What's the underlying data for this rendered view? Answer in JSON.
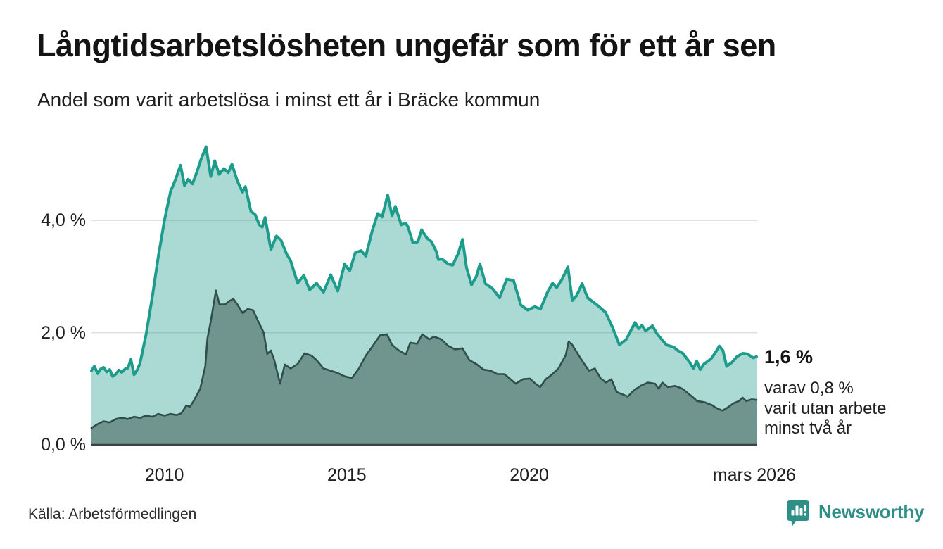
{
  "header": {
    "title": "Långtidsarbetslösheten ungefär som för ett år sen",
    "subtitle": "Andel som varit arbetslösa i minst ett år i Bräcke kommun"
  },
  "annotation": {
    "value_label": "1,6 %",
    "detail_lines": [
      "varav 0,8 %",
      "varit utan arbete",
      "minst två år"
    ]
  },
  "footer": {
    "source": "Källa: Arbetsförmedlingen",
    "brand": "Newsworthy"
  },
  "colors": {
    "outer_line": "#1e9c8b",
    "outer_fill": "rgba(23,153,138,0.36)",
    "inner_line": "#2f4f4a",
    "inner_fill": "#70948e",
    "grid": "#e0e0e0",
    "axis": "#384442",
    "brand_teal": "#2d8f86"
  },
  "chart_data": {
    "type": "area",
    "title": "Långtidsarbetslösheten ungefär som för ett år sen",
    "subtitle": "Andel som varit arbetslösa i minst ett år i Bräcke kommun",
    "unit": "%",
    "grid": "horizontal",
    "legend": "none",
    "x_domain": [
      2008.0,
      2026.25
    ],
    "y_domain": [
      0,
      5.5
    ],
    "x_ticks": [
      {
        "label": "2010",
        "year": 2010
      },
      {
        "label": "2015",
        "year": 2015
      },
      {
        "label": "2020",
        "year": 2020
      },
      {
        "label": "mars 2026",
        "year": 2026.17
      }
    ],
    "y_ticks": [
      {
        "label": "0,0 %",
        "value": 0
      },
      {
        "label": "2,0 %",
        "value": 2
      },
      {
        "label": "4,0 %",
        "value": 4
      }
    ],
    "end_values": {
      "minst_ett_ar": 1.6,
      "minst_tva_ar": 0.8
    },
    "series": [
      {
        "name": "Andel arbetslösa minst ett år",
        "line": "#1e9c8b",
        "fill": "rgba(23,153,138,0.36)",
        "stroke_width": 4,
        "points": [
          [
            2008.0,
            1.32
          ],
          [
            2008.08,
            1.4
          ],
          [
            2008.17,
            1.27
          ],
          [
            2008.25,
            1.35
          ],
          [
            2008.33,
            1.38
          ],
          [
            2008.42,
            1.3
          ],
          [
            2008.5,
            1.34
          ],
          [
            2008.58,
            1.22
          ],
          [
            2008.67,
            1.26
          ],
          [
            2008.75,
            1.33
          ],
          [
            2008.83,
            1.29
          ],
          [
            2008.92,
            1.35
          ],
          [
            2009.0,
            1.37
          ],
          [
            2009.08,
            1.52
          ],
          [
            2009.17,
            1.25
          ],
          [
            2009.25,
            1.33
          ],
          [
            2009.33,
            1.45
          ],
          [
            2009.5,
            1.98
          ],
          [
            2009.67,
            2.65
          ],
          [
            2009.83,
            3.35
          ],
          [
            2010.0,
            4.0
          ],
          [
            2010.17,
            4.52
          ],
          [
            2010.3,
            4.72
          ],
          [
            2010.44,
            4.98
          ],
          [
            2010.55,
            4.62
          ],
          [
            2010.65,
            4.73
          ],
          [
            2010.77,
            4.65
          ],
          [
            2010.9,
            4.88
          ],
          [
            2011.0,
            5.08
          ],
          [
            2011.14,
            5.31
          ],
          [
            2011.27,
            4.78
          ],
          [
            2011.38,
            5.06
          ],
          [
            2011.5,
            4.82
          ],
          [
            2011.63,
            4.92
          ],
          [
            2011.75,
            4.85
          ],
          [
            2011.85,
            5.0
          ],
          [
            2012.0,
            4.7
          ],
          [
            2012.14,
            4.5
          ],
          [
            2012.22,
            4.6
          ],
          [
            2012.37,
            4.16
          ],
          [
            2012.49,
            4.1
          ],
          [
            2012.6,
            3.92
          ],
          [
            2012.68,
            3.88
          ],
          [
            2012.76,
            4.05
          ],
          [
            2012.92,
            3.48
          ],
          [
            2013.07,
            3.72
          ],
          [
            2013.2,
            3.64
          ],
          [
            2013.35,
            3.4
          ],
          [
            2013.46,
            3.28
          ],
          [
            2013.65,
            2.88
          ],
          [
            2013.82,
            3.02
          ],
          [
            2013.98,
            2.76
          ],
          [
            2014.17,
            2.88
          ],
          [
            2014.36,
            2.72
          ],
          [
            2014.56,
            3.03
          ],
          [
            2014.75,
            2.74
          ],
          [
            2014.94,
            3.22
          ],
          [
            2015.08,
            3.1
          ],
          [
            2015.23,
            3.42
          ],
          [
            2015.39,
            3.46
          ],
          [
            2015.52,
            3.36
          ],
          [
            2015.7,
            3.82
          ],
          [
            2015.85,
            4.12
          ],
          [
            2015.97,
            4.06
          ],
          [
            2016.12,
            4.45
          ],
          [
            2016.24,
            4.08
          ],
          [
            2016.33,
            4.25
          ],
          [
            2016.49,
            3.92
          ],
          [
            2016.62,
            3.95
          ],
          [
            2016.68,
            3.88
          ],
          [
            2016.81,
            3.6
          ],
          [
            2016.95,
            3.62
          ],
          [
            2017.05,
            3.83
          ],
          [
            2017.2,
            3.68
          ],
          [
            2017.32,
            3.62
          ],
          [
            2017.45,
            3.45
          ],
          [
            2017.51,
            3.3
          ],
          [
            2017.61,
            3.31
          ],
          [
            2017.78,
            3.22
          ],
          [
            2017.9,
            3.2
          ],
          [
            2018.05,
            3.4
          ],
          [
            2018.17,
            3.66
          ],
          [
            2018.28,
            3.16
          ],
          [
            2018.42,
            2.85
          ],
          [
            2018.55,
            3.0
          ],
          [
            2018.65,
            3.22
          ],
          [
            2018.8,
            2.87
          ],
          [
            2019.0,
            2.78
          ],
          [
            2019.19,
            2.62
          ],
          [
            2019.38,
            2.95
          ],
          [
            2019.57,
            2.93
          ],
          [
            2019.77,
            2.49
          ],
          [
            2019.96,
            2.4
          ],
          [
            2020.15,
            2.46
          ],
          [
            2020.31,
            2.42
          ],
          [
            2020.5,
            2.72
          ],
          [
            2020.64,
            2.88
          ],
          [
            2020.75,
            2.8
          ],
          [
            2020.9,
            2.95
          ],
          [
            2021.06,
            3.17
          ],
          [
            2021.18,
            2.57
          ],
          [
            2021.3,
            2.66
          ],
          [
            2021.45,
            2.87
          ],
          [
            2021.6,
            2.62
          ],
          [
            2021.7,
            2.57
          ],
          [
            2021.9,
            2.47
          ],
          [
            2022.09,
            2.36
          ],
          [
            2022.28,
            2.1
          ],
          [
            2022.47,
            1.78
          ],
          [
            2022.66,
            1.88
          ],
          [
            2022.9,
            2.18
          ],
          [
            2023.0,
            2.07
          ],
          [
            2023.09,
            2.13
          ],
          [
            2023.19,
            2.03
          ],
          [
            2023.38,
            2.12
          ],
          [
            2023.49,
            1.99
          ],
          [
            2023.63,
            1.88
          ],
          [
            2023.76,
            1.78
          ],
          [
            2023.96,
            1.74
          ],
          [
            2024.07,
            1.68
          ],
          [
            2024.21,
            1.63
          ],
          [
            2024.4,
            1.47
          ],
          [
            2024.5,
            1.36
          ],
          [
            2024.59,
            1.49
          ],
          [
            2024.69,
            1.34
          ],
          [
            2024.79,
            1.44
          ],
          [
            2024.98,
            1.53
          ],
          [
            2025.11,
            1.65
          ],
          [
            2025.21,
            1.76
          ],
          [
            2025.31,
            1.68
          ],
          [
            2025.41,
            1.4
          ],
          [
            2025.56,
            1.47
          ],
          [
            2025.69,
            1.57
          ],
          [
            2025.85,
            1.63
          ],
          [
            2025.98,
            1.62
          ],
          [
            2026.14,
            1.55
          ],
          [
            2026.23,
            1.57
          ]
        ]
      },
      {
        "name": "varav arbetslösa minst två år",
        "line": "#2f4f4a",
        "fill": "#70948e",
        "stroke_width": 2.6,
        "points": [
          [
            2008.0,
            0.3
          ],
          [
            2008.17,
            0.37
          ],
          [
            2008.33,
            0.42
          ],
          [
            2008.5,
            0.4
          ],
          [
            2008.67,
            0.46
          ],
          [
            2008.83,
            0.48
          ],
          [
            2009.0,
            0.46
          ],
          [
            2009.17,
            0.5
          ],
          [
            2009.33,
            0.48
          ],
          [
            2009.5,
            0.52
          ],
          [
            2009.67,
            0.5
          ],
          [
            2009.83,
            0.55
          ],
          [
            2010.0,
            0.52
          ],
          [
            2010.17,
            0.55
          ],
          [
            2010.33,
            0.53
          ],
          [
            2010.46,
            0.56
          ],
          [
            2010.6,
            0.7
          ],
          [
            2010.7,
            0.68
          ],
          [
            2010.8,
            0.78
          ],
          [
            2010.98,
            1.0
          ],
          [
            2011.12,
            1.4
          ],
          [
            2011.18,
            1.9
          ],
          [
            2011.27,
            2.2
          ],
          [
            2011.41,
            2.75
          ],
          [
            2011.51,
            2.5
          ],
          [
            2011.66,
            2.5
          ],
          [
            2011.78,
            2.56
          ],
          [
            2011.89,
            2.6
          ],
          [
            2012.0,
            2.5
          ],
          [
            2012.14,
            2.35
          ],
          [
            2012.28,
            2.42
          ],
          [
            2012.43,
            2.4
          ],
          [
            2012.57,
            2.2
          ],
          [
            2012.72,
            2.0
          ],
          [
            2012.82,
            1.62
          ],
          [
            2012.92,
            1.68
          ],
          [
            2013.01,
            1.51
          ],
          [
            2013.17,
            1.09
          ],
          [
            2013.3,
            1.43
          ],
          [
            2013.46,
            1.36
          ],
          [
            2013.65,
            1.44
          ],
          [
            2013.84,
            1.63
          ],
          [
            2014.03,
            1.59
          ],
          [
            2014.17,
            1.51
          ],
          [
            2014.36,
            1.36
          ],
          [
            2014.56,
            1.32
          ],
          [
            2014.75,
            1.28
          ],
          [
            2014.94,
            1.22
          ],
          [
            2015.14,
            1.19
          ],
          [
            2015.33,
            1.36
          ],
          [
            2015.52,
            1.59
          ],
          [
            2015.71,
            1.76
          ],
          [
            2015.91,
            1.95
          ],
          [
            2016.1,
            1.97
          ],
          [
            2016.24,
            1.78
          ],
          [
            2016.43,
            1.68
          ],
          [
            2016.62,
            1.61
          ],
          [
            2016.74,
            1.82
          ],
          [
            2016.93,
            1.8
          ],
          [
            2017.07,
            1.97
          ],
          [
            2017.26,
            1.88
          ],
          [
            2017.39,
            1.93
          ],
          [
            2017.59,
            1.88
          ],
          [
            2017.78,
            1.76
          ],
          [
            2017.97,
            1.7
          ],
          [
            2018.17,
            1.72
          ],
          [
            2018.36,
            1.51
          ],
          [
            2018.55,
            1.44
          ],
          [
            2018.75,
            1.34
          ],
          [
            2018.94,
            1.32
          ],
          [
            2019.13,
            1.26
          ],
          [
            2019.32,
            1.26
          ],
          [
            2019.52,
            1.15
          ],
          [
            2019.63,
            1.09
          ],
          [
            2019.83,
            1.17
          ],
          [
            2020.02,
            1.18
          ],
          [
            2020.15,
            1.1
          ],
          [
            2020.3,
            1.03
          ],
          [
            2020.45,
            1.17
          ],
          [
            2020.6,
            1.24
          ],
          [
            2020.8,
            1.36
          ],
          [
            2021.0,
            1.6
          ],
          [
            2021.08,
            1.84
          ],
          [
            2021.18,
            1.78
          ],
          [
            2021.35,
            1.6
          ],
          [
            2021.5,
            1.45
          ],
          [
            2021.64,
            1.32
          ],
          [
            2021.8,
            1.36
          ],
          [
            2021.95,
            1.19
          ],
          [
            2022.1,
            1.11
          ],
          [
            2022.25,
            1.17
          ],
          [
            2022.4,
            0.94
          ],
          [
            2022.55,
            0.9
          ],
          [
            2022.7,
            0.86
          ],
          [
            2022.85,
            0.96
          ],
          [
            2023.05,
            1.05
          ],
          [
            2023.25,
            1.11
          ],
          [
            2023.45,
            1.09
          ],
          [
            2023.55,
            1.0
          ],
          [
            2023.65,
            1.11
          ],
          [
            2023.8,
            1.03
          ],
          [
            2024.0,
            1.05
          ],
          [
            2024.2,
            1.0
          ],
          [
            2024.35,
            0.92
          ],
          [
            2024.5,
            0.84
          ],
          [
            2024.6,
            0.78
          ],
          [
            2024.8,
            0.76
          ],
          [
            2025.0,
            0.71
          ],
          [
            2025.15,
            0.65
          ],
          [
            2025.3,
            0.61
          ],
          [
            2025.45,
            0.67
          ],
          [
            2025.6,
            0.74
          ],
          [
            2025.75,
            0.78
          ],
          [
            2025.85,
            0.84
          ],
          [
            2025.95,
            0.78
          ],
          [
            2026.1,
            0.81
          ],
          [
            2026.23,
            0.8
          ]
        ]
      }
    ]
  }
}
